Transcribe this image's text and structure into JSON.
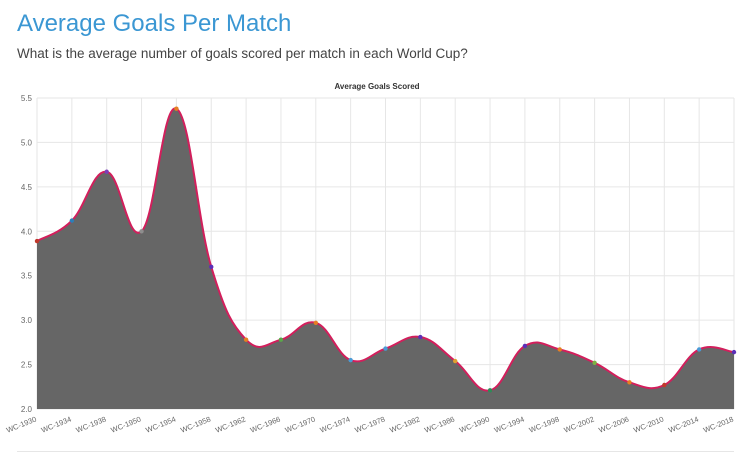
{
  "page": {
    "title": "Average Goals Per Match",
    "subtitle": "What is the average number of goals scored per match in each World Cup?"
  },
  "colors": {
    "title": "#3b97d3",
    "area_fill": "#666666",
    "line": "#d21f5c",
    "grid": "#e6e6e6"
  },
  "chart_data": {
    "type": "area",
    "title": "Average Goals Scored",
    "xlabel": "",
    "ylabel": "",
    "ylim": [
      2.0,
      5.5
    ],
    "yticks": [
      "2.0",
      "2.5",
      "3.0",
      "3.5",
      "4.0",
      "4.5",
      "5.0",
      "5.5"
    ],
    "grid": true,
    "legend": "none",
    "categories": [
      "WC-1930",
      "WC-1934",
      "WC-1938",
      "WC-1950",
      "WC-1954",
      "WC-1958",
      "WC-1962",
      "WC-1966",
      "WC-1970",
      "WC-1974",
      "WC-1978",
      "WC-1982",
      "WC-1986",
      "WC-1990",
      "WC-1994",
      "WC-1998",
      "WC-2002",
      "WC-2006",
      "WC-2010",
      "WC-2014",
      "WC-2018"
    ],
    "series": [
      {
        "values": [
          3.89,
          4.12,
          4.67,
          4.0,
          5.38,
          3.6,
          2.78,
          2.78,
          2.97,
          2.55,
          2.68,
          2.81,
          2.54,
          2.21,
          2.71,
          2.67,
          2.52,
          2.3,
          2.27,
          2.67,
          2.64
        ],
        "marker_colors": [
          "#c0392b",
          "#2c7fb8",
          "#7b3fb8",
          "#8e8e8e",
          "#e67e22",
          "#5b2fb8",
          "#e67e22",
          "#5aa64a",
          "#e67e22",
          "#4a9bd6",
          "#4a9bd6",
          "#5b2fb8",
          "#e0a030",
          "#2e8b57",
          "#5b2fb8",
          "#e67e22",
          "#7cb342",
          "#e67e22",
          "#c0392b",
          "#4a9bd6",
          "#5b2fb8"
        ]
      }
    ]
  }
}
